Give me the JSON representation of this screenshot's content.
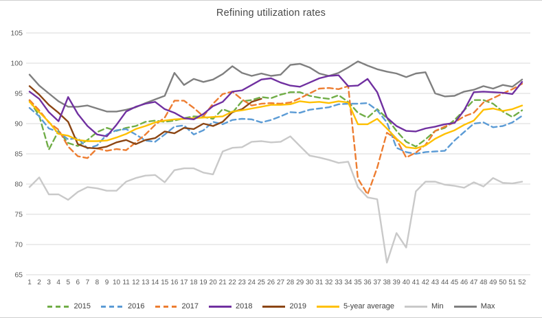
{
  "chart": {
    "title": "Refining utilization rates",
    "background": "#ffffff",
    "gridline_color": "#d9d9d9",
    "axis_label_color": "#595959",
    "title_color": "#484848"
  },
  "chart_data": {
    "type": "line",
    "title": "Refining utilization rates",
    "xlabel": "",
    "ylabel": "",
    "x_ticks": [
      1,
      2,
      3,
      4,
      5,
      6,
      7,
      8,
      9,
      10,
      11,
      12,
      13,
      14,
      15,
      16,
      17,
      18,
      19,
      20,
      21,
      22,
      23,
      24,
      25,
      26,
      27,
      28,
      29,
      30,
      31,
      32,
      33,
      34,
      35,
      36,
      37,
      38,
      39,
      40,
      41,
      42,
      43,
      44,
      45,
      46,
      47,
      48,
      49,
      50,
      51,
      52
    ],
    "y_ticks": [
      65,
      70,
      75,
      80,
      85,
      90,
      95,
      100,
      105
    ],
    "ylim": [
      65,
      105
    ],
    "grid": "horizontal",
    "legend_position": "bottom",
    "series": [
      {
        "name": "2015",
        "color": "#70AD47",
        "style": "dashed",
        "values": [
          93.8,
          91.3,
          85.7,
          88.8,
          86.8,
          86.3,
          87.3,
          88.6,
          89.3,
          88.8,
          89.3,
          89.6,
          90.3,
          90.5,
          90.3,
          90.5,
          90.9,
          91.2,
          91.1,
          90.8,
          92.4,
          91.8,
          93.7,
          93.9,
          94.4,
          94.2,
          94.8,
          95.2,
          95.2,
          94.6,
          94.3,
          94.1,
          94.7,
          93.6,
          91.8,
          91.0,
          92.4,
          90.9,
          88.8,
          87.0,
          86.2,
          87.4,
          88.8,
          89.3,
          90.6,
          92.2,
          93.9,
          93.9,
          93.3,
          92.0,
          91.1,
          92.2
        ]
      },
      {
        "name": "2016",
        "color": "#5B9BD5",
        "style": "dashed",
        "values": [
          92.6,
          91.2,
          89.2,
          88.6,
          87.4,
          87.6,
          85.9,
          86.4,
          88.2,
          88.9,
          89.1,
          88.2,
          87.2,
          87.0,
          88.2,
          89.5,
          89.7,
          88.2,
          88.9,
          90.3,
          89.9,
          90.6,
          90.8,
          90.7,
          90.2,
          90.6,
          91.2,
          91.9,
          91.8,
          92.3,
          92.5,
          92.7,
          93.2,
          93.3,
          93.3,
          93.4,
          92.2,
          90.2,
          86.0,
          85.3,
          85.0,
          85.3,
          85.4,
          85.5,
          87.2,
          88.6,
          90.0,
          90.2,
          89.4,
          89.6,
          90.2,
          91.3
        ]
      },
      {
        "name": "2017",
        "color": "#ED7D31",
        "style": "dashed",
        "values": [
          93.9,
          92.2,
          90.2,
          89.0,
          86.2,
          84.6,
          84.3,
          85.9,
          85.5,
          85.8,
          85.6,
          86.9,
          88.2,
          89.8,
          91.0,
          93.8,
          93.8,
          92.6,
          91.2,
          93.3,
          94.9,
          95.3,
          94.0,
          93.0,
          93.3,
          93.4,
          93.3,
          93.5,
          94.2,
          95.0,
          95.8,
          95.9,
          95.7,
          96.2,
          80.9,
          78.3,
          82.7,
          88.5,
          87.4,
          84.4,
          85.2,
          86.5,
          88.8,
          89.5,
          90.2,
          91.2,
          91.8,
          93.5,
          94.2,
          95.0,
          95.7,
          96.6
        ]
      },
      {
        "name": "2018",
        "color": "#7030A0",
        "style": "solid",
        "values": [
          95.3,
          94.1,
          91.9,
          90.4,
          94.4,
          91.6,
          89.6,
          88.2,
          87.9,
          89.8,
          92.0,
          92.8,
          93.3,
          93.6,
          92.4,
          91.8,
          90.9,
          90.7,
          91.6,
          92.9,
          93.6,
          95.3,
          95.5,
          96.4,
          97.3,
          97.5,
          96.8,
          96.3,
          96.1,
          96.8,
          97.5,
          97.9,
          98.0,
          96.2,
          96.3,
          97.4,
          95.2,
          91.0,
          89.6,
          88.8,
          88.7,
          89.2,
          89.5,
          89.9,
          90.1,
          92.2,
          95.2,
          95.3,
          95.2,
          95.1,
          94.9,
          96.9
        ]
      },
      {
        "name": "2019",
        "color": "#8B4513",
        "style": "solid",
        "values": [
          96.2,
          94.8,
          93.1,
          91.8,
          90.3,
          86.6,
          86.0,
          85.9,
          86.2,
          86.9,
          87.3,
          86.6,
          87.3,
          87.6,
          88.7,
          88.4,
          89.3,
          89.1,
          90.0,
          89.6,
          90.3,
          91.9,
          92.4,
          93.6,
          94.1
        ]
      },
      {
        "name": "5-year average",
        "color": "#FFC000",
        "style": "solid",
        "values": [
          93.6,
          91.9,
          90.3,
          88.3,
          88.0,
          87.3,
          87.1,
          87.1,
          87.2,
          87.7,
          88.3,
          89.1,
          89.6,
          90.2,
          90.5,
          90.7,
          90.8,
          90.9,
          91.0,
          91.1,
          91.2,
          92.0,
          92.2,
          92.5,
          92.8,
          93.1,
          93.1,
          93.2,
          93.7,
          93.5,
          93.6,
          93.4,
          93.7,
          93.5,
          89.9,
          89.9,
          90.8,
          89.2,
          87.5,
          86.1,
          85.9,
          86.4,
          87.5,
          88.3,
          88.9,
          89.8,
          90.5,
          92.3,
          92.5,
          92.1,
          92.4,
          93.0
        ]
      },
      {
        "name": "Min",
        "color": "#C9C9C9",
        "style": "solid",
        "values": [
          79.5,
          81.1,
          78.3,
          78.3,
          77.4,
          78.7,
          79.5,
          79.3,
          78.9,
          78.9,
          80.4,
          81.0,
          81.4,
          81.5,
          80.3,
          82.3,
          82.6,
          82.6,
          81.9,
          81.6,
          85.4,
          86.0,
          86.1,
          87.0,
          87.1,
          86.9,
          87.0,
          87.9,
          86.3,
          84.7,
          84.4,
          84.0,
          83.5,
          83.7,
          79.5,
          77.8,
          77.5,
          67.0,
          71.9,
          69.5,
          78.8,
          80.4,
          80.4,
          79.9,
          79.7,
          79.4,
          80.3,
          79.6,
          81.0,
          80.2,
          80.1,
          80.4
        ]
      },
      {
        "name": "Max",
        "color": "#7F7F7F",
        "style": "solid",
        "values": [
          98.1,
          96.3,
          95.0,
          93.7,
          92.8,
          92.8,
          93.0,
          92.5,
          92.0,
          92.0,
          92.3,
          92.7,
          93.4,
          94.0,
          94.6,
          98.4,
          96.4,
          97.4,
          96.9,
          97.3,
          98.2,
          99.5,
          98.4,
          97.9,
          98.3,
          97.9,
          98.1,
          99.7,
          99.9,
          99.3,
          98.3,
          97.9,
          98.4,
          99.3,
          100.3,
          99.6,
          99.0,
          98.6,
          98.3,
          97.7,
          98.3,
          98.5,
          95.0,
          94.5,
          94.6,
          95.3,
          95.6,
          96.2,
          95.8,
          96.4,
          96.1,
          97.3
        ]
      }
    ]
  }
}
